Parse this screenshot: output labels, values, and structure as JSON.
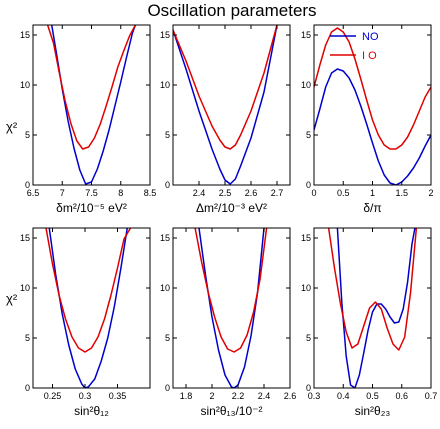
{
  "title": "Oscillation parameters",
  "ylabel": "χ²",
  "legend": {
    "placement": "top-right of panel 3",
    "entries": [
      {
        "label": "NO",
        "color": "#0000cc"
      },
      {
        "label": "I O",
        "color": "#e00000"
      }
    ]
  },
  "chart_data": [
    {
      "type": "line",
      "xlabel": "δm²/10⁻⁵ eV²",
      "xlim": [
        6.5,
        8.5
      ],
      "ylim": [
        0,
        16
      ],
      "xticks": [
        "6.5",
        "7",
        "7.5",
        "8",
        "8.5"
      ],
      "yticks": [
        "0",
        "5",
        "10",
        "15"
      ],
      "series": [
        {
          "name": "NO",
          "color": "#0000cc",
          "x": [
            6.82,
            6.9,
            7.0,
            7.1,
            7.2,
            7.3,
            7.4,
            7.5,
            7.6,
            7.7,
            7.8,
            7.9,
            8.0,
            8.1,
            8.2,
            8.25
          ],
          "y": [
            16,
            13.2,
            9.6,
            6.4,
            3.7,
            1.5,
            0.1,
            0.3,
            1.6,
            3.4,
            5.5,
            7.9,
            10.3,
            12.8,
            15.2,
            16
          ]
        },
        {
          "name": "I O",
          "color": "#e00000",
          "x": [
            6.75,
            6.85,
            6.95,
            7.05,
            7.15,
            7.25,
            7.35,
            7.45,
            7.55,
            7.65,
            7.75,
            7.85,
            7.95,
            8.05,
            8.15,
            8.25
          ],
          "y": [
            16,
            14.2,
            11.2,
            8.4,
            6.1,
            4.4,
            3.6,
            3.8,
            4.7,
            6.1,
            7.9,
            9.8,
            11.8,
            13.4,
            14.9,
            16
          ]
        }
      ]
    },
    {
      "type": "line",
      "xlabel": "Δm²/10⁻³ eV²",
      "xlim": [
        2.3,
        2.75
      ],
      "ylim": [
        0,
        16
      ],
      "xticks": [
        "2.4",
        "2.5",
        "2.6",
        "2.7"
      ],
      "yticks": [
        "0",
        "5",
        "10",
        "15"
      ],
      "series": [
        {
          "name": "NO",
          "color": "#0000cc",
          "x": [
            2.3,
            2.35,
            2.4,
            2.45,
            2.48,
            2.5,
            2.52,
            2.54,
            2.56,
            2.6,
            2.65,
            2.7
          ],
          "y": [
            15.5,
            11.6,
            7.4,
            3.6,
            1.6,
            0.5,
            0.1,
            0.6,
            1.9,
            4.7,
            9.3,
            16
          ]
        },
        {
          "name": "I O",
          "color": "#e00000",
          "x": [
            2.3,
            2.35,
            2.4,
            2.45,
            2.48,
            2.5,
            2.52,
            2.54,
            2.56,
            2.6,
            2.65,
            2.7
          ],
          "y": [
            15.5,
            12.4,
            8.9,
            5.9,
            4.5,
            3.8,
            3.6,
            4.0,
            5.0,
            7.4,
            11.2,
            16
          ]
        }
      ]
    },
    {
      "type": "line",
      "xlabel": "δ/π",
      "xlim": [
        0,
        2
      ],
      "ylim": [
        0,
        16
      ],
      "xticks": [
        "0",
        "0.5",
        "1",
        "1.5",
        "2"
      ],
      "yticks": [
        "0",
        "5",
        "10",
        "15"
      ],
      "series": [
        {
          "name": "NO",
          "color": "#0000cc",
          "x": [
            0.0,
            0.1,
            0.2,
            0.3,
            0.4,
            0.5,
            0.6,
            0.7,
            0.8,
            0.9,
            1.0,
            1.1,
            1.2,
            1.3,
            1.4,
            1.5,
            1.6,
            1.7,
            1.8,
            1.9,
            2.0
          ],
          "y": [
            5.5,
            7.6,
            9.8,
            11.2,
            11.6,
            11.4,
            10.7,
            9.5,
            7.9,
            6.1,
            4.2,
            2.4,
            1.0,
            0.2,
            0.0,
            0.3,
            0.9,
            1.7,
            2.7,
            3.9,
            5.0
          ]
        },
        {
          "name": "I O",
          "color": "#e00000",
          "x": [
            0.0,
            0.1,
            0.2,
            0.3,
            0.4,
            0.5,
            0.6,
            0.7,
            0.8,
            0.9,
            1.0,
            1.1,
            1.2,
            1.3,
            1.4,
            1.5,
            1.6,
            1.7,
            1.8,
            1.9,
            2.0
          ],
          "y": [
            9.8,
            12.0,
            14.0,
            15.3,
            15.7,
            15.3,
            14.3,
            12.6,
            10.6,
            8.5,
            6.5,
            5.0,
            4.0,
            3.6,
            3.6,
            4.0,
            4.8,
            6.0,
            7.4,
            8.8,
            9.8
          ]
        }
      ]
    },
    {
      "type": "line",
      "xlabel": "sin²θ₁₂",
      "xlim": [
        0.22,
        0.4
      ],
      "ylim": [
        0,
        16
      ],
      "xticks": [
        "0.25",
        "0.3",
        "0.35"
      ],
      "yticks": [
        "0",
        "5",
        "10",
        "15"
      ],
      "series": [
        {
          "name": "NO",
          "color": "#0000cc",
          "x": [
            0.245,
            0.255,
            0.265,
            0.275,
            0.285,
            0.295,
            0.3,
            0.305,
            0.315,
            0.325,
            0.335,
            0.345,
            0.355,
            0.365
          ],
          "y": [
            16,
            11.3,
            7.4,
            4.3,
            1.9,
            0.4,
            0.0,
            0.1,
            0.9,
            2.7,
            5.0,
            8.1,
            11.9,
            16
          ]
        },
        {
          "name": "I O",
          "color": "#e00000",
          "x": [
            0.24,
            0.25,
            0.26,
            0.27,
            0.28,
            0.29,
            0.3,
            0.31,
            0.32,
            0.33,
            0.34,
            0.35,
            0.36,
            0.37
          ],
          "y": [
            16,
            12.4,
            9.3,
            6.9,
            5.1,
            4.0,
            3.6,
            4.0,
            5.1,
            6.9,
            9.3,
            12.0,
            14.9,
            16
          ]
        }
      ]
    },
    {
      "type": "line",
      "xlabel": "sin²θ₁₃/10⁻²",
      "xlim": [
        1.7,
        2.6
      ],
      "ylim": [
        0,
        16
      ],
      "xticks": [
        "1.8",
        "2",
        "2.2",
        "2.4",
        "2.6"
      ],
      "yticks": [
        "0",
        "5",
        "10",
        "15"
      ],
      "series": [
        {
          "name": "NO",
          "color": "#0000cc",
          "x": [
            1.9,
            1.95,
            2.0,
            2.05,
            2.1,
            2.15,
            2.17,
            2.2,
            2.25,
            2.3,
            2.35,
            2.4
          ],
          "y": [
            16,
            11.3,
            7.1,
            3.8,
            1.3,
            0.1,
            0.0,
            0.3,
            2.1,
            5.2,
            9.5,
            16
          ]
        },
        {
          "name": "I O",
          "color": "#e00000",
          "x": [
            1.87,
            1.92,
            1.97,
            2.02,
            2.07,
            2.12,
            2.17,
            2.22,
            2.27,
            2.32,
            2.37,
            2.42
          ],
          "y": [
            16,
            12.6,
            9.6,
            7.1,
            5.1,
            3.9,
            3.6,
            4.0,
            5.3,
            7.6,
            10.9,
            16
          ]
        }
      ]
    },
    {
      "type": "line",
      "xlabel": "sin²θ₂₃",
      "xlim": [
        0.3,
        0.7
      ],
      "ylim": [
        0,
        16
      ],
      "xticks": [
        "0.3",
        "0.4",
        "0.5",
        "0.6",
        "0.7"
      ],
      "yticks": [
        "0",
        "5",
        "10",
        "15"
      ],
      "series": [
        {
          "name": "NO",
          "color": "#0000cc",
          "x": [
            0.38,
            0.395,
            0.41,
            0.425,
            0.44,
            0.455,
            0.47,
            0.485,
            0.5,
            0.515,
            0.53,
            0.545,
            0.56,
            0.575,
            0.59,
            0.605,
            0.62,
            0.635,
            0.645
          ],
          "y": [
            16,
            8.6,
            3.2,
            0.3,
            0.0,
            1.3,
            3.5,
            5.8,
            7.6,
            8.4,
            8.4,
            7.9,
            7.1,
            6.5,
            6.6,
            7.9,
            10.6,
            14.4,
            16
          ]
        },
        {
          "name": "I O",
          "color": "#e00000",
          "x": [
            0.35,
            0.37,
            0.39,
            0.41,
            0.43,
            0.45,
            0.47,
            0.49,
            0.51,
            0.53,
            0.55,
            0.57,
            0.59,
            0.61,
            0.63,
            0.65
          ],
          "y": [
            16,
            12.0,
            8.5,
            5.6,
            4.0,
            4.4,
            6.2,
            8.0,
            8.6,
            7.9,
            6.0,
            4.4,
            3.8,
            5.1,
            9.5,
            16
          ]
        }
      ]
    }
  ]
}
